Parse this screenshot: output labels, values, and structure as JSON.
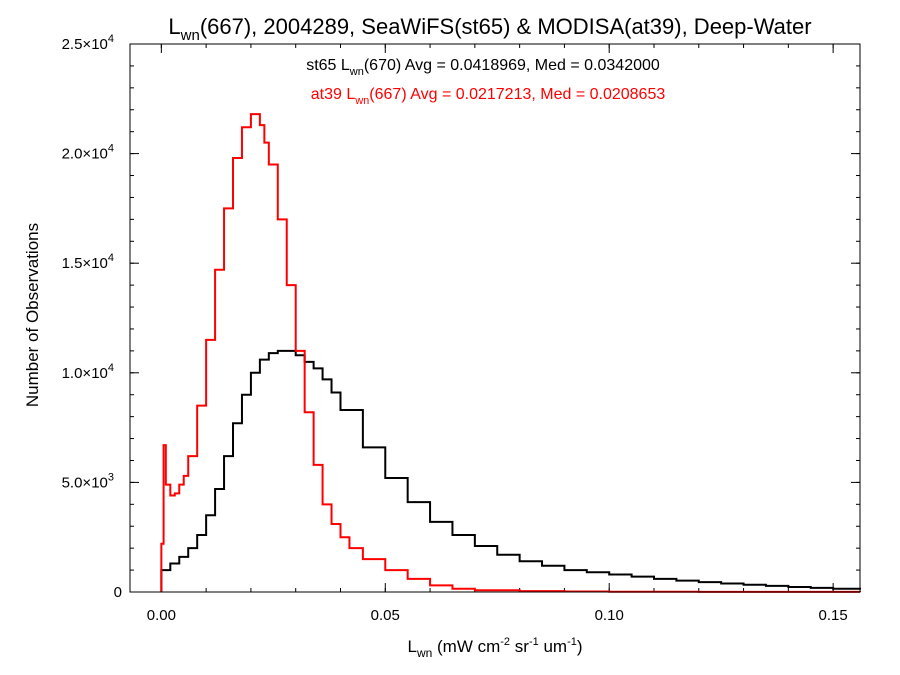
{
  "chart_data": {
    "type": "line",
    "title": {
      "main": "L",
      "sub": "wn",
      "rest": "(667), 2004289, SeaWiFS(st65) & MODISA(at39), Deep-Water"
    },
    "xlabel": {
      "main": "L",
      "sub": "wn",
      "unit_a": " (mW cm",
      "sup1": "-2",
      "unit_b": " sr",
      "sup2": "-1",
      "unit_c": " um",
      "sup3": "-1",
      "unit_d": ")"
    },
    "ylabel": "Number of Observations",
    "xlim": [
      -0.007,
      0.156
    ],
    "ylim": [
      0,
      25000
    ],
    "x_ticks": [
      {
        "value": 0.0,
        "label": "0.00"
      },
      {
        "value": 0.05,
        "label": "0.05"
      },
      {
        "value": 0.1,
        "label": "0.10"
      },
      {
        "value": 0.15,
        "label": "0.15"
      }
    ],
    "y_ticks": [
      {
        "value": 0,
        "mant": "0",
        "exp": ""
      },
      {
        "value": 5000,
        "mant": "5.0×10",
        "exp": "3"
      },
      {
        "value": 10000,
        "mant": "1.0×10",
        "exp": "4"
      },
      {
        "value": 15000,
        "mant": "1.5×10",
        "exp": "4"
      },
      {
        "value": 20000,
        "mant": "2.0×10",
        "exp": "4"
      },
      {
        "value": 25000,
        "mant": "2.5×10",
        "exp": "4"
      }
    ],
    "grid": false,
    "annotations": [
      {
        "series": 0,
        "pre": "st65 L",
        "sub": "wn",
        "post": "(670) Avg = 0.0418969, Med = 0.0342000",
        "color": "#000000"
      },
      {
        "series": 1,
        "pre": "at39 L",
        "sub": "wn",
        "post": "(667) Avg = 0.0217213, Med = 0.0208653",
        "color": "#ff0000"
      }
    ],
    "series": [
      {
        "color": "#000000",
        "x": [
          0.0,
          0.002,
          0.004,
          0.006,
          0.008,
          0.01,
          0.012,
          0.014,
          0.016,
          0.018,
          0.02,
          0.022,
          0.024,
          0.026,
          0.028,
          0.03,
          0.032,
          0.034,
          0.036,
          0.038,
          0.04,
          0.045,
          0.05,
          0.055,
          0.06,
          0.065,
          0.07,
          0.075,
          0.08,
          0.085,
          0.09,
          0.095,
          0.1,
          0.105,
          0.11,
          0.115,
          0.12,
          0.125,
          0.13,
          0.135,
          0.14,
          0.145,
          0.15,
          0.156
        ],
        "y": [
          1000,
          1300,
          1600,
          2000,
          2600,
          3500,
          4700,
          6200,
          7700,
          9000,
          10000,
          10600,
          10900,
          11000,
          11000,
          10800,
          10500,
          10200,
          9700,
          9100,
          8300,
          6600,
          5200,
          4100,
          3200,
          2600,
          2100,
          1700,
          1400,
          1200,
          1000,
          900,
          800,
          700,
          600,
          520,
          450,
          390,
          330,
          280,
          230,
          190,
          150,
          110
        ]
      },
      {
        "color": "#ff0000",
        "x": [
          0.0,
          0.0005,
          0.001,
          0.002,
          0.003,
          0.004,
          0.005,
          0.006,
          0.008,
          0.01,
          0.012,
          0.014,
          0.016,
          0.018,
          0.02,
          0.021,
          0.022,
          0.023,
          0.024,
          0.026,
          0.028,
          0.03,
          0.032,
          0.034,
          0.036,
          0.038,
          0.04,
          0.042,
          0.045,
          0.05,
          0.055,
          0.06,
          0.065,
          0.07,
          0.08,
          0.09,
          0.1,
          0.12,
          0.156
        ],
        "y": [
          2200,
          6700,
          4900,
          4400,
          4500,
          4900,
          5300,
          6200,
          8500,
          11500,
          14700,
          17500,
          19800,
          21200,
          21800,
          21800,
          21300,
          20500,
          19500,
          17000,
          14000,
          11000,
          8200,
          5800,
          4000,
          3100,
          2500,
          2000,
          1500,
          1000,
          600,
          300,
          150,
          80,
          40,
          20,
          10,
          5,
          0
        ]
      }
    ]
  }
}
